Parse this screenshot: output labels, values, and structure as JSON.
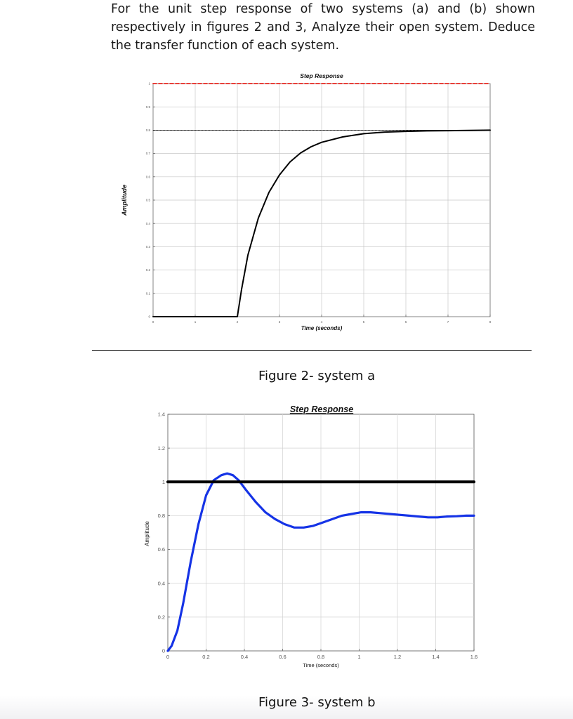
{
  "problem": {
    "text": "For the unit step response of two systems (a) and (b) shown respectively in figures 2 and 3, Analyze their open system. Deduce the transfer function of each system."
  },
  "captions": {
    "figure_a": "Figure 2- system a",
    "figure_b": "Figure 3- system b"
  },
  "chart_data": [
    {
      "type": "line",
      "title": "Step Response",
      "xlabel": "Time (seconds)",
      "ylabel": "Amplitude",
      "xlim": [
        0,
        8
      ],
      "ylim": [
        0,
        1
      ],
      "x_ticks": [
        0,
        1,
        2,
        3,
        4,
        5,
        6,
        7,
        8
      ],
      "y_ticks": [
        0,
        0.1,
        0.2,
        0.3,
        0.4,
        0.5,
        0.6,
        0.7,
        0.8,
        0.9,
        1
      ],
      "grid": true,
      "series": [
        {
          "role": "step-response",
          "color": "#000000",
          "x": [
            0,
            1,
            2,
            2.1,
            2.25,
            2.5,
            2.75,
            3,
            3.25,
            3.5,
            3.75,
            4,
            4.5,
            5,
            5.5,
            6,
            6.5,
            7,
            7.5,
            8
          ],
          "y": [
            0,
            0,
            0,
            0.117,
            0.264,
            0.424,
            0.533,
            0.608,
            0.664,
            0.702,
            0.729,
            0.748,
            0.771,
            0.785,
            0.792,
            0.795,
            0.797,
            0.798,
            0.799,
            0.8
          ]
        },
        {
          "role": "reference-unit-step",
          "color": "#e8251f",
          "style": "dashed",
          "x": [
            0,
            8
          ],
          "y": [
            1,
            1
          ]
        },
        {
          "role": "final-value",
          "color": "#000000",
          "style": "dotted",
          "x": [
            0,
            8
          ],
          "y": [
            0.8,
            0.8
          ]
        }
      ]
    },
    {
      "type": "line",
      "title": "Step Response",
      "xlabel": "Time (seconds)",
      "ylabel": "Amplitude",
      "xlim": [
        0,
        1.6
      ],
      "ylim": [
        0,
        1.4
      ],
      "x_ticks": [
        0,
        0.2,
        0.4,
        0.6,
        0.8,
        1,
        1.2,
        1.4,
        1.6
      ],
      "y_ticks": [
        0,
        0.2,
        0.4,
        0.6,
        0.8,
        1,
        1.2,
        1.4
      ],
      "grid": true,
      "series": [
        {
          "role": "step-response",
          "color": "#1533e6",
          "x": [
            0,
            0.02,
            0.05,
            0.08,
            0.12,
            0.16,
            0.2,
            0.24,
            0.28,
            0.31,
            0.34,
            0.37,
            0.41,
            0.46,
            0.51,
            0.56,
            0.61,
            0.66,
            0.71,
            0.76,
            0.81,
            0.86,
            0.91,
            0.96,
            1.01,
            1.06,
            1.11,
            1.16,
            1.21,
            1.26,
            1.31,
            1.36,
            1.41,
            1.46,
            1.51,
            1.56,
            1.6
          ],
          "y": [
            0,
            0.03,
            0.12,
            0.28,
            0.53,
            0.75,
            0.92,
            1.01,
            1.04,
            1.05,
            1.04,
            1.01,
            0.95,
            0.88,
            0.82,
            0.78,
            0.75,
            0.73,
            0.73,
            0.74,
            0.76,
            0.78,
            0.8,
            0.81,
            0.82,
            0.82,
            0.815,
            0.81,
            0.805,
            0.8,
            0.795,
            0.79,
            0.79,
            0.795,
            0.797,
            0.8,
            0.8
          ]
        },
        {
          "role": "reference-unit-step",
          "color": "#000000",
          "style": "solid",
          "x": [
            0,
            1.6
          ],
          "y": [
            1,
            1
          ]
        }
      ]
    }
  ]
}
